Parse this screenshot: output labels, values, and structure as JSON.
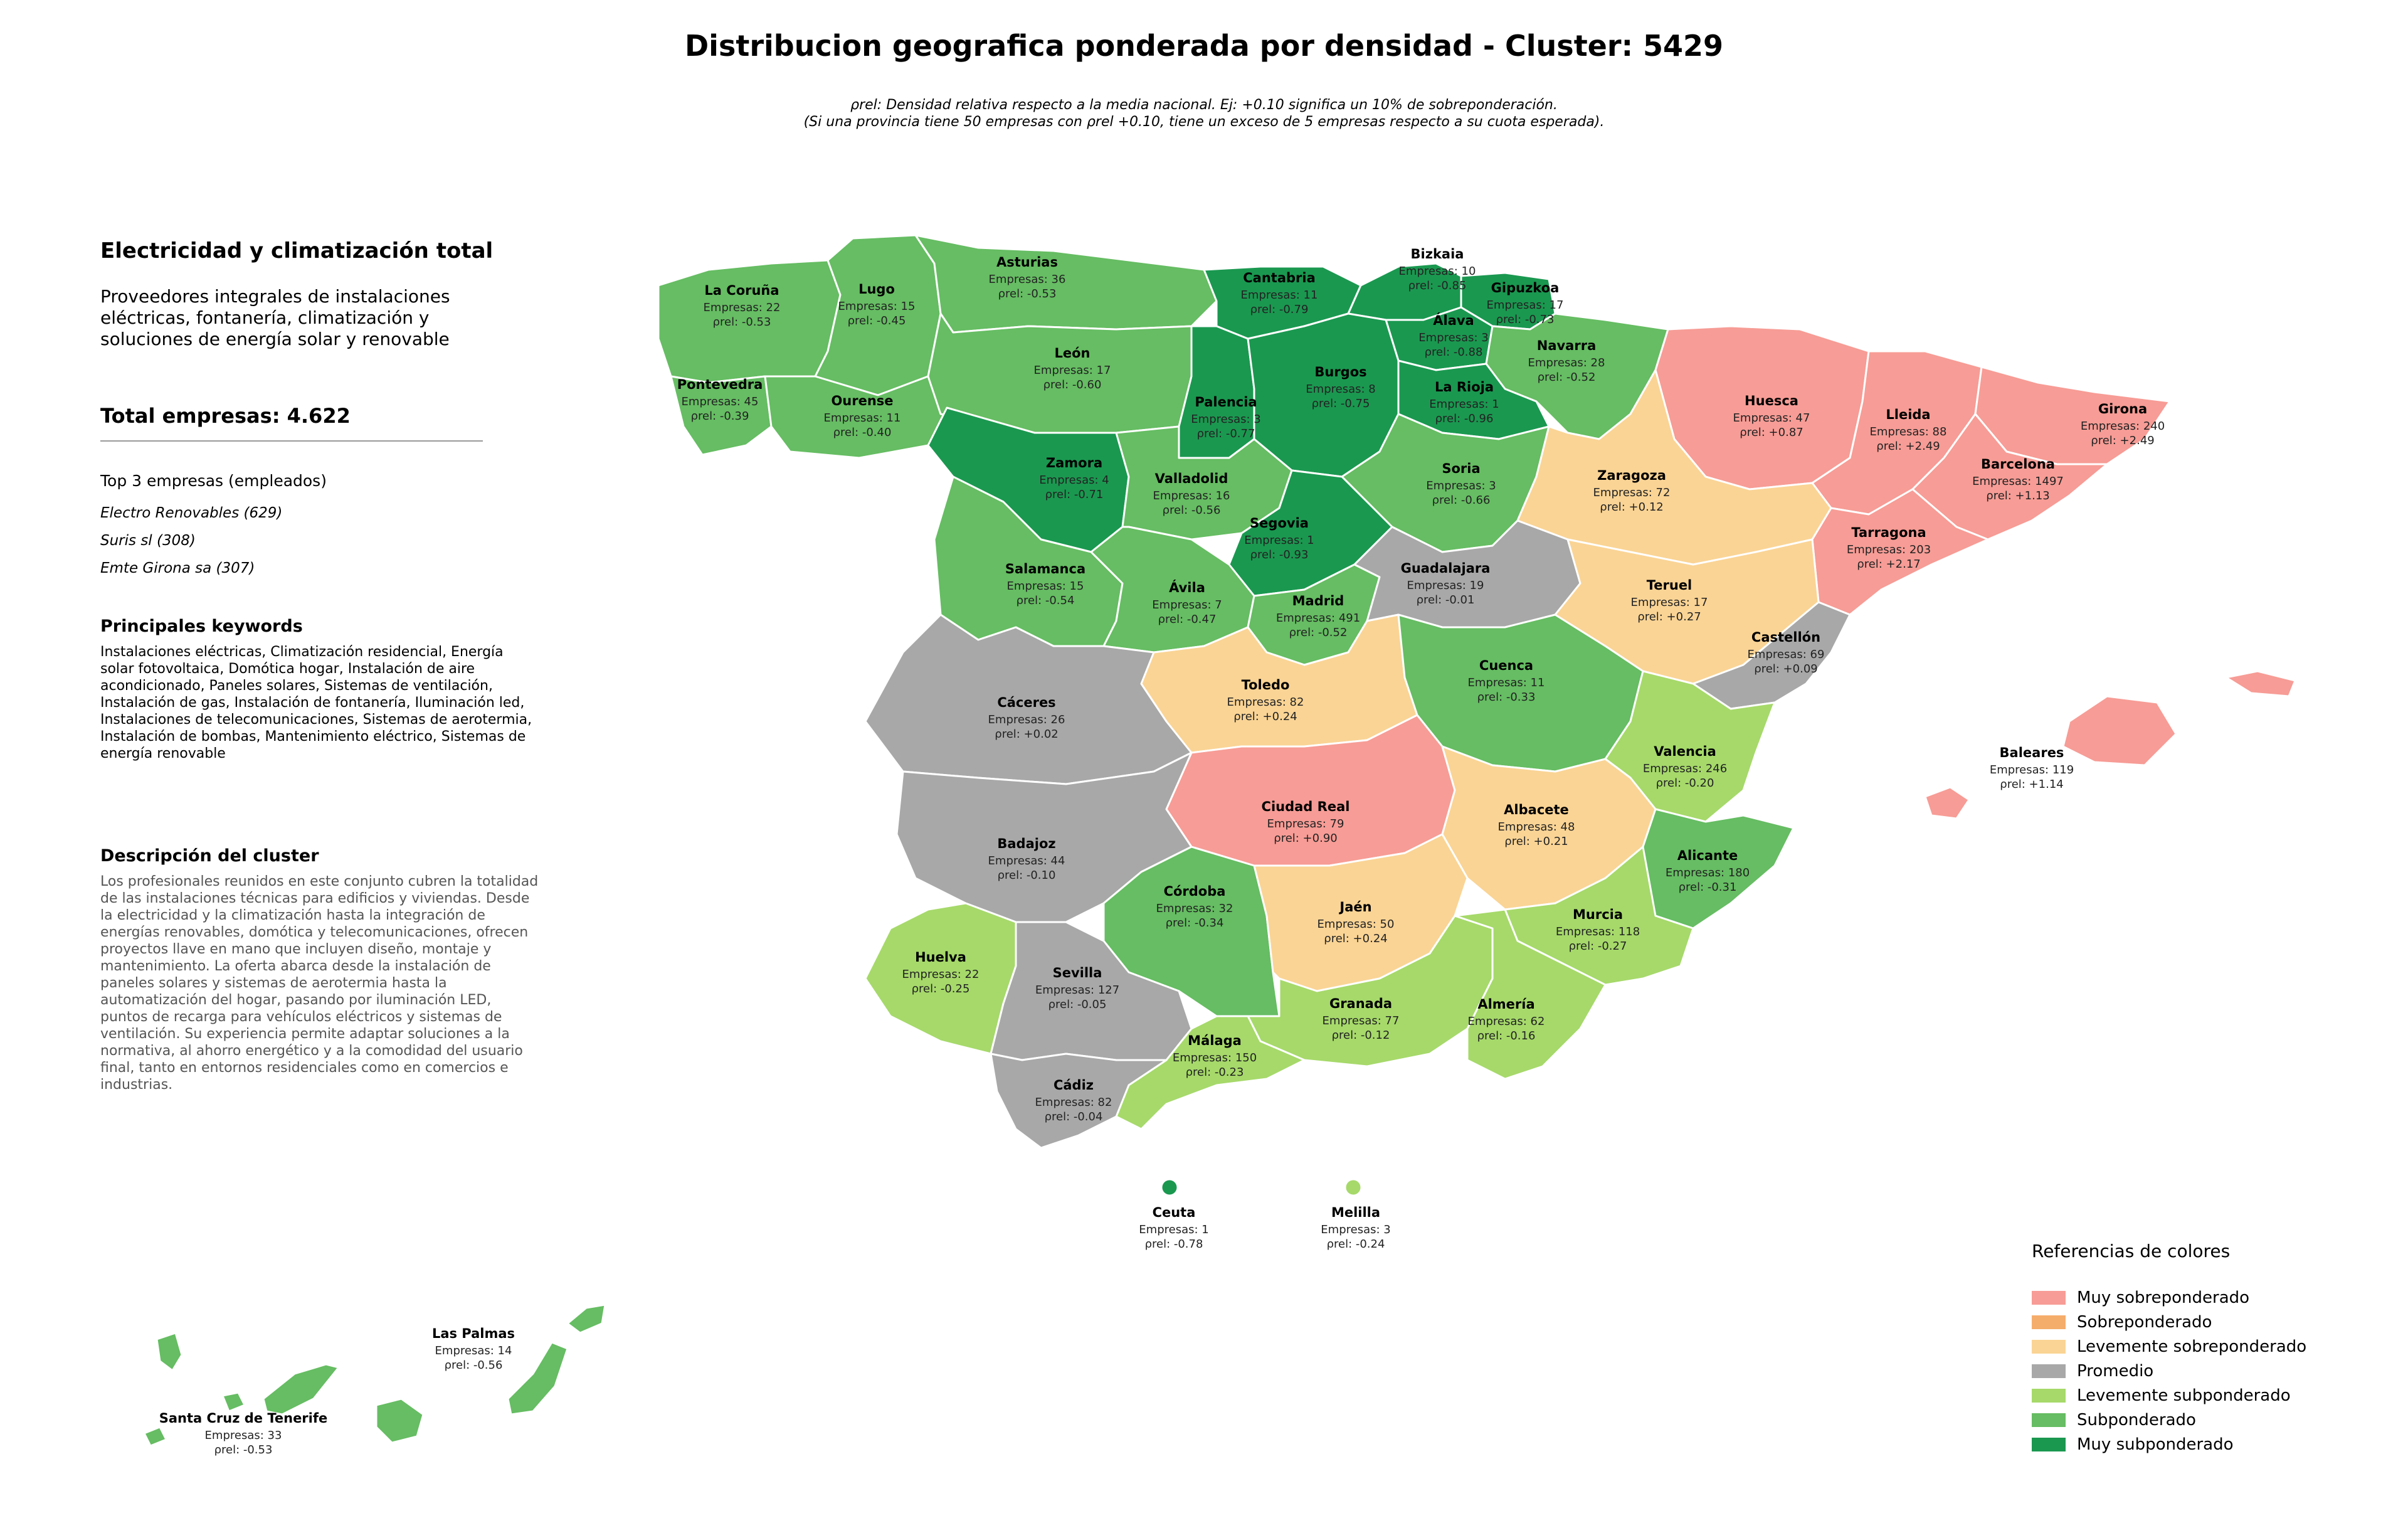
{
  "title": "Distribucion geografica ponderada por densidad - Cluster: 5429",
  "notes": {
    "line1": "ρrel: Densidad relativa respecto a la media nacional. Ej: +0.10 significa un 10% de sobreponderación.",
    "line2": "(Si una provincia tiene 50 empresas con ρrel +0.10, tiene un exceso de 5 empresas respecto a su cuota esperada)."
  },
  "sidebar": {
    "cluster_name": "Electricidad y climatización total",
    "cluster_subtitle": "Proveedores integrales de instalaciones eléctricas, fontanería, climatización y soluciones de energía solar y renovable",
    "total": "Total empresas: 4.622",
    "top_heading": "Top 3 empresas (empleados)",
    "top": [
      "Electro Renovables (629)",
      "Suris sl (308)",
      "Emte Girona sa (307)"
    ],
    "keywords_heading": "Principales keywords",
    "keywords": "Instalaciones eléctricas, Climatización residencial, Energía solar fotovoltaica, Domótica hogar, Instalación de aire acondicionado, Paneles solares, Sistemas de ventilación, Instalación de gas, Instalación de fontanería, Iluminación led, Instalaciones de telecomunicaciones, Sistemas de aerotermia, Instalación de bombas, Mantenimiento eléctrico, Sistemas de energía renovable",
    "description_heading": "Descripción del cluster",
    "description": "Los profesionales reunidos en este conjunto cubren la totalidad de las instalaciones técnicas para edificios y viviendas. Desde la electricidad y la climatización hasta la integración de energías renovables, domótica y telecomunicaciones, ofrecen proyectos llave en mano que incluyen diseño, montaje y mantenimiento. La oferta abarca desde la instalación de paneles solares y sistemas de aerotermia hasta la automatización del hogar, pasando por iluminación LED, puntos de recarga para vehículos eléctricos y sistemas de ventilación. Su experiencia permite adaptar soluciones a la normativa, al ahorro energético y a la comodidad del usuario final, tanto en entornos residenciales como en comercios e industrias."
  },
  "legend": {
    "title": "Referencias de colores",
    "items": [
      {
        "label": "Muy sobreponderado",
        "color": "#f79c96"
      },
      {
        "label": "Sobreponderado",
        "color": "#f5ad6b"
      },
      {
        "label": "Levemente sobreponderado",
        "color": "#fad495"
      },
      {
        "label": "Promedio",
        "color": "#a8a8a8"
      },
      {
        "label": "Levemente subponderado",
        "color": "#a6d96a"
      },
      {
        "label": "Subponderado",
        "color": "#66bd63"
      },
      {
        "label": "Muy subponderado",
        "color": "#1a9850"
      }
    ]
  },
  "provinces": [
    {
      "id": "la-coruna",
      "name": "La Coruña",
      "empresas": "Empresas: 22",
      "rho": "ρrel: -0.53",
      "cat": 5
    },
    {
      "id": "lugo",
      "name": "Lugo",
      "empresas": "Empresas: 15",
      "rho": "ρrel: -0.45",
      "cat": 5
    },
    {
      "id": "asturias",
      "name": "Asturias",
      "empresas": "Empresas: 36",
      "rho": "ρrel: -0.53",
      "cat": 5
    },
    {
      "id": "cantabria",
      "name": "Cantabria",
      "empresas": "Empresas: 11",
      "rho": "ρrel: -0.79",
      "cat": 6
    },
    {
      "id": "bizkaia",
      "name": "Bizkaia",
      "empresas": "Empresas: 10",
      "rho": "ρrel: -0.85",
      "cat": 6
    },
    {
      "id": "gipuzkoa",
      "name": "Gipuzkoa",
      "empresas": "Empresas: 17",
      "rho": "ρrel: -0.73",
      "cat": 6
    },
    {
      "id": "alava",
      "name": "Álava",
      "empresas": "Empresas: 3",
      "rho": "ρrel: -0.88",
      "cat": 6
    },
    {
      "id": "navarra",
      "name": "Navarra",
      "empresas": "Empresas: 28",
      "rho": "ρrel: -0.52",
      "cat": 5
    },
    {
      "id": "pontevedra",
      "name": "Pontevedra",
      "empresas": "Empresas: 45",
      "rho": "ρrel: -0.39",
      "cat": 5
    },
    {
      "id": "ourense",
      "name": "Ourense",
      "empresas": "Empresas: 11",
      "rho": "ρrel: -0.40",
      "cat": 5
    },
    {
      "id": "leon",
      "name": "León",
      "empresas": "Empresas: 17",
      "rho": "ρrel: -0.60",
      "cat": 5
    },
    {
      "id": "palencia",
      "name": "Palencia",
      "empresas": "Empresas: 3",
      "rho": "ρrel: -0.77",
      "cat": 6
    },
    {
      "id": "burgos",
      "name": "Burgos",
      "empresas": "Empresas: 8",
      "rho": "ρrel: -0.75",
      "cat": 6
    },
    {
      "id": "la-rioja",
      "name": "La Rioja",
      "empresas": "Empresas: 1",
      "rho": "ρrel: -0.96",
      "cat": 6
    },
    {
      "id": "huesca",
      "name": "Huesca",
      "empresas": "Empresas: 47",
      "rho": "ρrel: +0.87",
      "cat": 0
    },
    {
      "id": "lleida",
      "name": "Lleida",
      "empresas": "Empresas: 88",
      "rho": "ρrel: +2.49",
      "cat": 0
    },
    {
      "id": "girona",
      "name": "Girona",
      "empresas": "Empresas: 240",
      "rho": "ρrel: +2.49",
      "cat": 0
    },
    {
      "id": "barcelona",
      "name": "Barcelona",
      "empresas": "Empresas: 1497",
      "rho": "ρrel: +1.13",
      "cat": 0
    },
    {
      "id": "zamora",
      "name": "Zamora",
      "empresas": "Empresas: 4",
      "rho": "ρrel: -0.71",
      "cat": 6
    },
    {
      "id": "valladolid",
      "name": "Valladolid",
      "empresas": "Empresas: 16",
      "rho": "ρrel: -0.56",
      "cat": 5
    },
    {
      "id": "soria",
      "name": "Soria",
      "empresas": "Empresas: 3",
      "rho": "ρrel: -0.66",
      "cat": 5
    },
    {
      "id": "zaragoza",
      "name": "Zaragoza",
      "empresas": "Empresas: 72",
      "rho": "ρrel: +0.12",
      "cat": 2
    },
    {
      "id": "segovia",
      "name": "Segovia",
      "empresas": "Empresas: 1",
      "rho": "ρrel: -0.93",
      "cat": 6
    },
    {
      "id": "tarragona",
      "name": "Tarragona",
      "empresas": "Empresas: 203",
      "rho": "ρrel: +2.17",
      "cat": 0
    },
    {
      "id": "salamanca",
      "name": "Salamanca",
      "empresas": "Empresas: 15",
      "rho": "ρrel: -0.54",
      "cat": 5
    },
    {
      "id": "avila",
      "name": "Ávila",
      "empresas": "Empresas: 7",
      "rho": "ρrel: -0.47",
      "cat": 5
    },
    {
      "id": "madrid",
      "name": "Madrid",
      "empresas": "Empresas: 491",
      "rho": "ρrel: -0.52",
      "cat": 5
    },
    {
      "id": "guadalajara",
      "name": "Guadalajara",
      "empresas": "Empresas: 19",
      "rho": "ρrel: -0.01",
      "cat": 3
    },
    {
      "id": "teruel",
      "name": "Teruel",
      "empresas": "Empresas: 17",
      "rho": "ρrel: +0.27",
      "cat": 2
    },
    {
      "id": "castellon",
      "name": "Castellón",
      "empresas": "Empresas: 69",
      "rho": "ρrel: +0.09",
      "cat": 3
    },
    {
      "id": "caceres",
      "name": "Cáceres",
      "empresas": "Empresas: 26",
      "rho": "ρrel: +0.02",
      "cat": 3
    },
    {
      "id": "toledo",
      "name": "Toledo",
      "empresas": "Empresas: 82",
      "rho": "ρrel: +0.24",
      "cat": 2
    },
    {
      "id": "cuenca",
      "name": "Cuenca",
      "empresas": "Empresas: 11",
      "rho": "ρrel: -0.33",
      "cat": 5
    },
    {
      "id": "valencia",
      "name": "Valencia",
      "empresas": "Empresas: 246",
      "rho": "ρrel: -0.20",
      "cat": 4
    },
    {
      "id": "baleares",
      "name": "Baleares",
      "empresas": "Empresas: 119",
      "rho": "ρrel: +1.14",
      "cat": 0
    },
    {
      "id": "ciudad-real",
      "name": "Ciudad Real",
      "empresas": "Empresas: 79",
      "rho": "ρrel: +0.90",
      "cat": 0
    },
    {
      "id": "albacete",
      "name": "Albacete",
      "empresas": "Empresas: 48",
      "rho": "ρrel: +0.21",
      "cat": 2
    },
    {
      "id": "badajoz",
      "name": "Badajoz",
      "empresas": "Empresas: 44",
      "rho": "ρrel: -0.10",
      "cat": 3
    },
    {
      "id": "alicante",
      "name": "Alicante",
      "empresas": "Empresas: 180",
      "rho": "ρrel: -0.31",
      "cat": 5
    },
    {
      "id": "cordoba",
      "name": "Córdoba",
      "empresas": "Empresas: 32",
      "rho": "ρrel: -0.34",
      "cat": 5
    },
    {
      "id": "jaen",
      "name": "Jaén",
      "empresas": "Empresas: 50",
      "rho": "ρrel: +0.24",
      "cat": 2
    },
    {
      "id": "murcia",
      "name": "Murcia",
      "empresas": "Empresas: 118",
      "rho": "ρrel: -0.27",
      "cat": 4
    },
    {
      "id": "huelva",
      "name": "Huelva",
      "empresas": "Empresas: 22",
      "rho": "ρrel: -0.25",
      "cat": 4
    },
    {
      "id": "sevilla",
      "name": "Sevilla",
      "empresas": "Empresas: 127",
      "rho": "ρrel: -0.05",
      "cat": 3
    },
    {
      "id": "granada",
      "name": "Granada",
      "empresas": "Empresas: 77",
      "rho": "ρrel: -0.12",
      "cat": 4
    },
    {
      "id": "almeria",
      "name": "Almería",
      "empresas": "Empresas: 62",
      "rho": "ρrel: -0.16",
      "cat": 4
    },
    {
      "id": "malaga",
      "name": "Málaga",
      "empresas": "Empresas: 150",
      "rho": "ρrel: -0.23",
      "cat": 4
    },
    {
      "id": "cadiz",
      "name": "Cádiz",
      "empresas": "Empresas: 82",
      "rho": "ρrel: -0.04",
      "cat": 3
    },
    {
      "id": "ceuta",
      "name": "Ceuta",
      "empresas": "Empresas: 1",
      "rho": "ρrel: -0.78",
      "cat": 6
    },
    {
      "id": "melilla",
      "name": "Melilla",
      "empresas": "Empresas: 3",
      "rho": "ρrel: -0.24",
      "cat": 4
    },
    {
      "id": "las-palmas",
      "name": "Las Palmas",
      "empresas": "Empresas: 14",
      "rho": "ρrel: -0.56",
      "cat": 5
    },
    {
      "id": "santa-cruz",
      "name": "Santa Cruz de Tenerife",
      "empresas": "Empresas: 33",
      "rho": "ρrel: -0.53",
      "cat": 5
    }
  ]
}
